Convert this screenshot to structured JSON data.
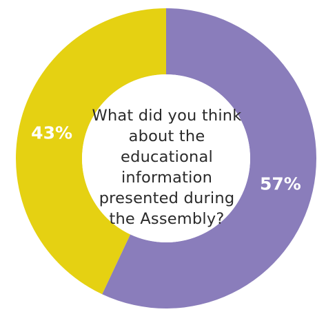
{
  "chart_data": {
    "type": "pie",
    "variant": "donut",
    "center_text": "What did you think about the educational information presented during the Assembly?",
    "categories": [
      "",
      ""
    ],
    "values": [
      57,
      43
    ],
    "labels": [
      "57%",
      "43%"
    ],
    "colors": [
      "#8a7dbb",
      "#e5d112"
    ],
    "start_angle": "top",
    "direction": "clockwise",
    "legend": "none"
  }
}
